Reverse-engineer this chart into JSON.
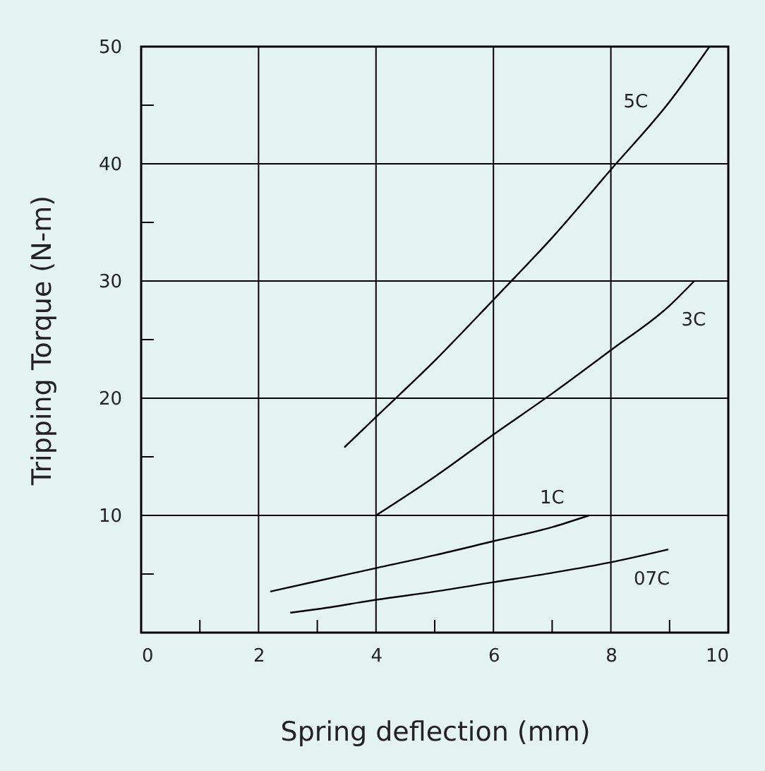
{
  "chart_data": {
    "type": "line",
    "xlabel": "Spring deflection (mm)",
    "ylabel": "Tripping Torque (N-m)",
    "xlim": [
      0,
      10
    ],
    "ylim": [
      0,
      50
    ],
    "xticks": [
      0,
      {
        "value": 1,
        "label": null
      },
      2,
      {
        "value": 3,
        "label": null
      },
      4,
      {
        "value": 5,
        "label": null
      },
      6,
      {
        "value": 7,
        "label": null
      },
      8,
      {
        "value": 9,
        "label": null
      },
      10
    ],
    "yticks": [
      {
        "value": 5,
        "label": null
      },
      10,
      {
        "value": 15,
        "label": null
      },
      20,
      {
        "value": 25,
        "label": null
      },
      30,
      {
        "value": 35,
        "label": null
      },
      40,
      {
        "value": 45,
        "label": null
      },
      50
    ],
    "grid": true,
    "marker": "none",
    "line_style": "solid",
    "series": [
      {
        "name": "5C",
        "color": "#000000",
        "x": [
          3.46,
          4,
          5,
          6,
          7,
          8,
          9,
          9.68
        ],
        "values": [
          15.8,
          18.4,
          23.2,
          28.4,
          33.7,
          39.5,
          45.3,
          50
        ]
      },
      {
        "name": "3C",
        "color": "#000000",
        "x": [
          4,
          5,
          6,
          7,
          8,
          9,
          9.42
        ],
        "values": [
          10.0,
          13.3,
          16.9,
          20.4,
          24.1,
          27.9,
          30
        ]
      },
      {
        "name": "1C",
        "color": "#000000",
        "x": [
          2.2,
          3,
          4,
          5,
          6,
          7,
          7.63
        ],
        "values": [
          3.5,
          4.4,
          5.5,
          6.6,
          7.8,
          9.0,
          10.0
        ]
      },
      {
        "name": "07C",
        "color": "#000000",
        "x": [
          2.54,
          3,
          4,
          5,
          6,
          7,
          8,
          8.98
        ],
        "values": [
          1.7,
          2.0,
          2.8,
          3.5,
          4.3,
          5.1,
          6.0,
          7.1
        ]
      }
    ]
  }
}
